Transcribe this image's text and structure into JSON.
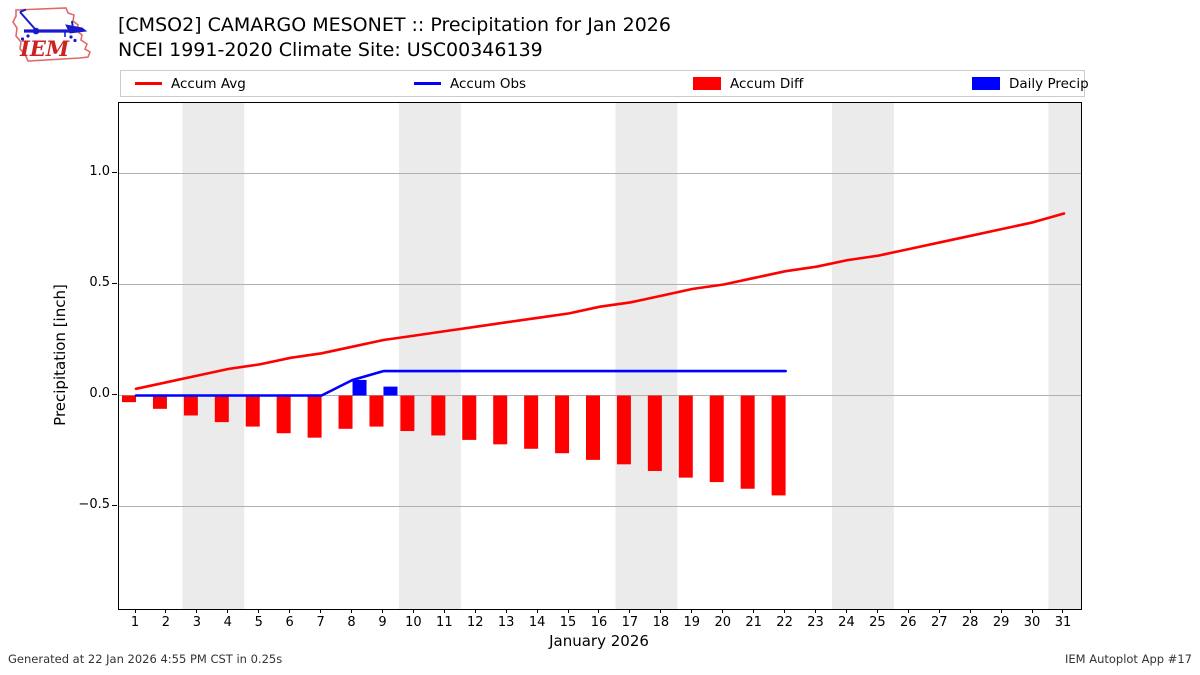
{
  "header": {
    "logo_text": "IEM"
  },
  "legend": {
    "items": [
      {
        "label": "Accum Avg",
        "type": "line",
        "color": "#ff0000"
      },
      {
        "label": "Accum Obs",
        "type": "line",
        "color": "#0000ff"
      },
      {
        "label": "Accum Diff",
        "type": "patch",
        "color": "#ff0000"
      },
      {
        "label": "Daily Precip",
        "type": "patch",
        "color": "#0000ff"
      }
    ]
  },
  "footer": {
    "left": "Generated at 22 Jan 2026 4:55 PM CST in 0.25s",
    "right": "IEM Autoplot App #17"
  },
  "chart_data": {
    "type": "line+bar",
    "title": "[CMSO2] CAMARGO MESONET :: Precipitation for Jan 2026",
    "subtitle": "NCEI 1991-2020 Climate Site: USC00346139",
    "xlabel": "January 2026",
    "ylabel": "Precipitation [inch]",
    "xlim": [
      0.45,
      31.56
    ],
    "ylim": [
      -0.96,
      1.32
    ],
    "grid": "horizontal",
    "legend_position": "top",
    "colors": {
      "weekend_band": "#ebebeb",
      "gridline": "#b0b0b0",
      "spine": "#000000",
      "avg": "#ff0000",
      "obs": "#0000ff",
      "diff": "#ff0000",
      "daily": "#0000ff"
    },
    "xticks": [
      1,
      2,
      3,
      4,
      5,
      6,
      7,
      8,
      9,
      10,
      11,
      12,
      13,
      14,
      15,
      16,
      17,
      18,
      19,
      20,
      21,
      22,
      23,
      24,
      25,
      26,
      27,
      28,
      29,
      30,
      31
    ],
    "yticks": [
      {
        "label": "1.0",
        "value": 1.0
      },
      {
        "label": "0.5",
        "value": 0.5
      },
      {
        "label": "0.0",
        "value": 0.0
      },
      {
        "label": "−0.5",
        "value": -0.5
      }
    ],
    "weekend_bands_days": [
      [
        2.5,
        4.5
      ],
      [
        9.5,
        11.5
      ],
      [
        16.5,
        18.5
      ],
      [
        23.5,
        25.5
      ],
      [
        30.5,
        31.6
      ]
    ],
    "series": [
      {
        "name": "Accum Avg",
        "type": "line",
        "color": "#ff0000",
        "x": [
          1,
          2,
          3,
          4,
          5,
          6,
          7,
          8,
          9,
          10,
          11,
          12,
          13,
          14,
          15,
          16,
          17,
          18,
          19,
          20,
          21,
          22,
          23,
          24,
          25,
          26,
          27,
          28,
          29,
          30,
          31
        ],
        "values": [
          0.03,
          0.06,
          0.09,
          0.12,
          0.14,
          0.17,
          0.19,
          0.22,
          0.25,
          0.27,
          0.29,
          0.31,
          0.33,
          0.35,
          0.37,
          0.4,
          0.42,
          0.45,
          0.48,
          0.5,
          0.53,
          0.56,
          0.58,
          0.61,
          0.63,
          0.66,
          0.69,
          0.72,
          0.75,
          0.78,
          0.82
        ]
      },
      {
        "name": "Accum Obs",
        "type": "line",
        "color": "#0000ff",
        "x": [
          1,
          2,
          3,
          4,
          5,
          6,
          7,
          8,
          9,
          10,
          11,
          12,
          13,
          14,
          15,
          16,
          17,
          18,
          19,
          20,
          21,
          22
        ],
        "values": [
          0,
          0,
          0,
          0,
          0,
          0,
          0,
          0.07,
          0.11,
          0.11,
          0.11,
          0.11,
          0.11,
          0.11,
          0.11,
          0.11,
          0.11,
          0.11,
          0.11,
          0.11,
          0.11,
          0.11
        ]
      },
      {
        "name": "Accum Diff",
        "type": "bar",
        "align": "left",
        "color": "#ff0000",
        "x": [
          1,
          2,
          3,
          4,
          5,
          6,
          7,
          8,
          9,
          10,
          11,
          12,
          13,
          14,
          15,
          16,
          17,
          18,
          19,
          20,
          21,
          22
        ],
        "values": [
          -0.03,
          -0.06,
          -0.09,
          -0.12,
          -0.14,
          -0.17,
          -0.19,
          -0.15,
          -0.14,
          -0.16,
          -0.18,
          -0.2,
          -0.22,
          -0.24,
          -0.26,
          -0.29,
          -0.31,
          -0.34,
          -0.37,
          -0.39,
          -0.42,
          -0.45
        ]
      },
      {
        "name": "Daily Precip",
        "type": "bar",
        "align": "right",
        "color": "#0000ff",
        "x": [
          8,
          9
        ],
        "values": [
          0.07,
          0.04
        ]
      }
    ]
  }
}
